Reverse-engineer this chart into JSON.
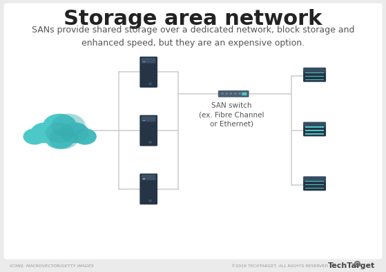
{
  "title": "Storage area network",
  "subtitle": "SANs provide shared storage over a dedicated network, block storage and\nenhanced speed, but they are an expensive option.",
  "title_fontsize": 22,
  "subtitle_fontsize": 9,
  "background_color": "#ebebeb",
  "card_color": "#ffffff",
  "cloud_color": "#4dc8c8",
  "cloud_shadow_color": "#38adb0",
  "server_body_dark": "#263545",
  "server_panel_color": "#3d5166",
  "server_led_color": "#8899aa",
  "disk_body_color": "#263545",
  "disk_ring_color": "#4dc8c8",
  "disk_top_color": "#354d63",
  "switch_body_color": "#4a5f72",
  "switch_led_color": "#4dc8c8",
  "line_color": "#cccccc",
  "text_color_dark": "#222222",
  "text_color_mid": "#555555",
  "text_color_light": "#999999",
  "footer_left": "ICONS: MACROVECTOR/GETTY IMAGES",
  "footer_right": "©2019 TECHTARGET. ALL RIGHTS RESERVED",
  "footer_brand": "TechTarget",
  "san_switch_label": "SAN switch\n(ex. Fibre Channel\nor Ethernet)"
}
